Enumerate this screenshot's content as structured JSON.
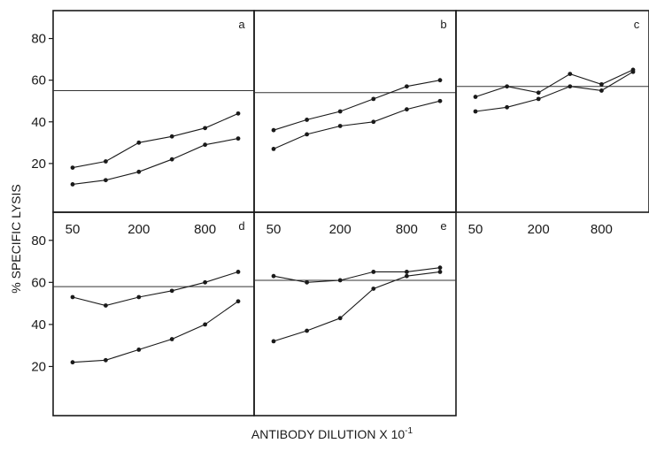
{
  "figure": {
    "ylabel": "% SPECIFIC LYSIS",
    "xlabel": "ANTIBODY DILUTION X 10",
    "xlabel_superscript": "-1"
  },
  "chart_data": [
    {
      "panel": "a",
      "type": "line",
      "x": [
        50,
        100,
        200,
        400,
        800,
        1600
      ],
      "xticks": [
        "50",
        "200",
        "800"
      ],
      "yticks": [
        "20",
        "40",
        "60",
        "80"
      ],
      "ylim": [
        0,
        90
      ],
      "reference_line": 55,
      "series": [
        {
          "values": [
            18,
            21,
            30,
            33,
            37,
            44
          ]
        },
        {
          "values": [
            10,
            12,
            16,
            22,
            29,
            32
          ]
        }
      ]
    },
    {
      "panel": "b",
      "type": "line",
      "x": [
        50,
        100,
        200,
        400,
        800,
        1600
      ],
      "xticks": [
        "50",
        "200",
        "800"
      ],
      "ylim": [
        0,
        90
      ],
      "reference_line": 54,
      "series": [
        {
          "values": [
            36,
            41,
            45,
            51,
            57,
            60
          ]
        },
        {
          "values": [
            27,
            34,
            38,
            40,
            46,
            50
          ]
        }
      ]
    },
    {
      "panel": "c",
      "type": "line",
      "x": [
        50,
        100,
        200,
        400,
        800,
        1600
      ],
      "xticks": [
        "50",
        "200",
        "800"
      ],
      "ylim": [
        0,
        90
      ],
      "reference_line": 57,
      "series": [
        {
          "values": [
            52,
            57,
            54,
            63,
            58,
            65
          ]
        },
        {
          "values": [
            45,
            47,
            51,
            57,
            55,
            64
          ]
        }
      ]
    },
    {
      "panel": "d",
      "type": "line",
      "x": [
        50,
        100,
        200,
        400,
        800,
        1600
      ],
      "yticks": [
        "20",
        "40",
        "60",
        "80"
      ],
      "ylim": [
        0,
        90
      ],
      "reference_line": 58,
      "series": [
        {
          "values": [
            53,
            49,
            53,
            56,
            60,
            65
          ]
        },
        {
          "values": [
            22,
            23,
            28,
            33,
            40,
            51
          ]
        }
      ]
    },
    {
      "panel": "e",
      "type": "line",
      "x": [
        50,
        100,
        200,
        400,
        800,
        1600
      ],
      "ylim": [
        0,
        90
      ],
      "reference_line": 61,
      "series": [
        {
          "values": [
            63,
            60,
            61,
            65,
            65,
            67
          ]
        },
        {
          "values": [
            32,
            37,
            43,
            57,
            63,
            65
          ]
        }
      ]
    }
  ]
}
